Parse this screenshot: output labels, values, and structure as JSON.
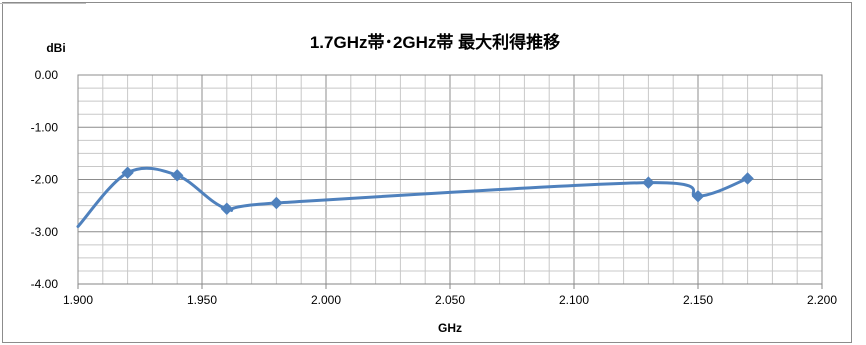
{
  "chart_data": {
    "type": "line",
    "title": "1.7GHz帯･2GHz帯  最大利得推移",
    "xlabel": "GHz",
    "ylabel": "dBi",
    "xlim": [
      1.9,
      2.2
    ],
    "ylim": [
      -4.0,
      0.0
    ],
    "x_ticks": [
      "1.900",
      "1.950",
      "2.000",
      "2.050",
      "2.100",
      "2.150",
      "2.200"
    ],
    "y_ticks": [
      "0.00",
      "-1.00",
      "-2.00",
      "-3.00",
      "-4.00"
    ],
    "grid": true,
    "series": [
      {
        "color": "#4f81bd",
        "marker": "diamond",
        "smooth": true,
        "x": [
          1.9,
          1.92,
          1.94,
          1.96,
          1.98,
          2.13,
          2.15,
          2.17
        ],
        "y": [
          -2.9,
          -1.87,
          -1.92,
          -2.56,
          -2.45,
          -2.06,
          -2.32,
          -1.98
        ],
        "markers_shown": [
          false,
          true,
          true,
          true,
          true,
          true,
          true,
          true
        ]
      }
    ]
  }
}
